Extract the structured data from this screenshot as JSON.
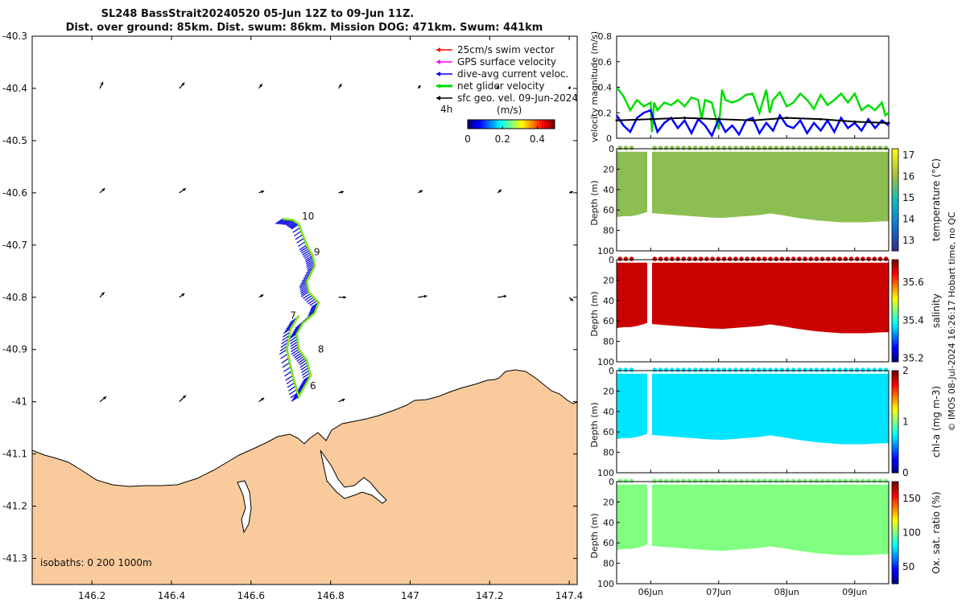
{
  "title": {
    "line1": "SL248 BassStrait20240520 05-Jun 12Z to 09-Jun 11Z.",
    "line2": "Dist. over ground: 85km. Dist. swum: 86km. Mission DOG: 471km. Swum: 441km"
  },
  "map": {
    "lon_range": [
      146.05,
      147.42
    ],
    "lat_range": [
      -41.35,
      -40.3
    ],
    "lon_ticks": [
      146.2,
      146.4,
      146.6,
      146.8,
      147,
      147.2,
      147.4
    ],
    "lon_tick_labels": [
      "146.2",
      "146.4",
      "146.6",
      "146.8",
      "147",
      "147.2",
      "147.4"
    ],
    "lat_ticks": [
      -40.3,
      -40.4,
      -40.5,
      -40.6,
      -40.7,
      -40.8,
      -40.9,
      -41,
      -41.1,
      -41.2,
      -41.3
    ],
    "lat_tick_labels": [
      "-40.3",
      "-40.4",
      "-40.5",
      "-40.6",
      "-40.7",
      "-40.8",
      "-40.9",
      "-41",
      "-41.1",
      "-41.2",
      "-41.3"
    ],
    "legend": [
      {
        "label": "25cm/s swim vector",
        "color": "#ff0000"
      },
      {
        "label": "GPS surface velocity",
        "color": "#ff00ff"
      },
      {
        "label": "dive-avg current veloc.",
        "color": "#0000ff"
      },
      {
        "label": "net glider velocity",
        "color": "#00dd00"
      },
      {
        "label": "sfc geo. vel. 09-Jun-2024",
        "color": "#000000"
      }
    ],
    "colorbar": {
      "label": "(m/s)",
      "note": "4h",
      "range": [
        0,
        0.5
      ],
      "ticks": [
        0,
        0.2,
        0.4
      ],
      "tick_labels": [
        "0",
        "0.2",
        "0.4"
      ]
    },
    "isobaths_label": "isobaths: 0   200  1000m",
    "day_labels": [
      {
        "day": "6",
        "lon": 146.74,
        "lat": -40.97
      },
      {
        "day": "7",
        "lon": 146.69,
        "lat": -40.835
      },
      {
        "day": "8",
        "lon": 146.76,
        "lat": -40.9
      },
      {
        "day": "9",
        "lon": 146.75,
        "lat": -40.713
      },
      {
        "day": "10",
        "lon": 146.72,
        "lat": -40.645
      }
    ],
    "track": [
      [
        146.68,
        -40.65
      ],
      [
        146.705,
        -40.652
      ],
      [
        146.72,
        -40.66
      ],
      [
        146.74,
        -40.7
      ],
      [
        146.755,
        -40.72
      ],
      [
        146.76,
        -40.74
      ],
      [
        146.74,
        -40.77
      ],
      [
        146.745,
        -40.79
      ],
      [
        146.77,
        -40.81
      ],
      [
        146.76,
        -40.83
      ],
      [
        146.73,
        -40.85
      ],
      [
        146.715,
        -40.87
      ],
      [
        146.72,
        -40.9
      ],
      [
        146.74,
        -40.92
      ],
      [
        146.75,
        -40.95
      ],
      [
        146.735,
        -40.97
      ],
      [
        146.72,
        -40.99
      ],
      [
        146.705,
        -40.95
      ],
      [
        146.69,
        -40.9
      ],
      [
        146.7,
        -40.86
      ],
      [
        146.72,
        -40.835
      ]
    ],
    "sfc_vectors": [
      {
        "lon": 146.22,
        "lat": -40.4,
        "u": 0.05,
        "v": 0.1
      },
      {
        "lon": 146.42,
        "lat": -40.4,
        "u": 0.08,
        "v": 0.09
      },
      {
        "lon": 146.62,
        "lat": -40.4,
        "u": 0.05,
        "v": 0.07
      },
      {
        "lon": 146.82,
        "lat": -40.4,
        "u": 0.05,
        "v": 0.07
      },
      {
        "lon": 147.02,
        "lat": -40.4,
        "u": 0.04,
        "v": 0.05
      },
      {
        "lon": 147.22,
        "lat": -40.4,
        "u": 0.02,
        "v": 0.04
      },
      {
        "lon": 147.4,
        "lat": -40.4,
        "u": 0.02,
        "v": 0.03
      },
      {
        "lon": 146.22,
        "lat": -40.6,
        "u": 0.08,
        "v": 0.07
      },
      {
        "lon": 146.42,
        "lat": -40.6,
        "u": 0.1,
        "v": 0.07
      },
      {
        "lon": 146.62,
        "lat": -40.6,
        "u": 0.08,
        "v": 0.03
      },
      {
        "lon": 146.82,
        "lat": -40.6,
        "u": 0.08,
        "v": 0.02
      },
      {
        "lon": 147.02,
        "lat": -40.6,
        "u": 0.07,
        "v": 0.04
      },
      {
        "lon": 147.22,
        "lat": -40.6,
        "u": 0.06,
        "v": 0.05
      },
      {
        "lon": 147.4,
        "lat": -40.6,
        "u": 0.06,
        "v": 0.02
      },
      {
        "lon": 146.22,
        "lat": -40.8,
        "u": 0.07,
        "v": 0.08
      },
      {
        "lon": 146.42,
        "lat": -40.8,
        "u": 0.08,
        "v": 0.06
      },
      {
        "lon": 146.62,
        "lat": -40.8,
        "u": 0.07,
        "v": 0.04
      },
      {
        "lon": 146.82,
        "lat": -40.8,
        "u": 0.12,
        "v": 0.0
      },
      {
        "lon": 147.02,
        "lat": -40.8,
        "u": 0.14,
        "v": 0.02
      },
      {
        "lon": 147.22,
        "lat": -40.8,
        "u": 0.14,
        "v": 0.02
      },
      {
        "lon": 147.4,
        "lat": -40.8,
        "u": 0.06,
        "v": -0.06
      },
      {
        "lon": 146.22,
        "lat": -41.0,
        "u": 0.1,
        "v": 0.08
      },
      {
        "lon": 146.42,
        "lat": -41.0,
        "u": 0.1,
        "v": 0.1
      },
      {
        "lon": 146.62,
        "lat": -41.0,
        "u": 0.08,
        "v": 0.06
      },
      {
        "lon": 146.82,
        "lat": -41.0,
        "u": 0.1,
        "v": 0.04
      }
    ]
  },
  "velocity_panel": {
    "ylabel": "velocity magnitude (m/s)",
    "ylim": [
      0,
      0.8
    ],
    "y_ticks": [
      0,
      0.2,
      0.4,
      0.6,
      0.8
    ],
    "y_tick_labels": [
      "0",
      "0.2",
      "0.4",
      "0.6",
      "0.8"
    ],
    "series": [
      {
        "name": "net glider velocity",
        "color": "#00dd00",
        "x": [
          5.5,
          5.6,
          5.7,
          5.8,
          5.9,
          6.0,
          6.02,
          6.05,
          6.1,
          6.2,
          6.3,
          6.4,
          6.5,
          6.6,
          6.7,
          6.75,
          6.8,
          6.9,
          7.0,
          7.05,
          7.1,
          7.2,
          7.3,
          7.4,
          7.5,
          7.6,
          7.7,
          7.75,
          7.8,
          7.9,
          8.0,
          8.1,
          8.2,
          8.3,
          8.4,
          8.5,
          8.6,
          8.7,
          8.8,
          8.9,
          9.0,
          9.1,
          9.2,
          9.3,
          9.4,
          9.45,
          9.5
        ],
        "values": [
          0.4,
          0.33,
          0.22,
          0.3,
          0.25,
          0.28,
          0.05,
          0.28,
          0.22,
          0.28,
          0.26,
          0.3,
          0.25,
          0.32,
          0.3,
          0.15,
          0.3,
          0.28,
          0.07,
          0.38,
          0.3,
          0.28,
          0.3,
          0.34,
          0.35,
          0.2,
          0.38,
          0.2,
          0.3,
          0.36,
          0.25,
          0.28,
          0.35,
          0.3,
          0.23,
          0.34,
          0.26,
          0.3,
          0.35,
          0.28,
          0.35,
          0.22,
          0.26,
          0.22,
          0.28,
          0.18,
          0.2
        ]
      },
      {
        "name": "dive-avg current veloc.",
        "color": "#0000ff",
        "x": [
          5.5,
          5.6,
          5.7,
          5.8,
          5.9,
          6.0,
          6.1,
          6.2,
          6.3,
          6.4,
          6.5,
          6.6,
          6.7,
          6.8,
          6.9,
          7.0,
          7.1,
          7.2,
          7.3,
          7.4,
          7.5,
          7.6,
          7.7,
          7.8,
          7.9,
          8.0,
          8.1,
          8.2,
          8.3,
          8.4,
          8.5,
          8.6,
          8.7,
          8.8,
          8.9,
          9.0,
          9.1,
          9.2,
          9.3,
          9.4,
          9.5
        ],
        "values": [
          0.18,
          0.1,
          0.05,
          0.16,
          0.2,
          0.22,
          0.05,
          0.12,
          0.16,
          0.08,
          0.14,
          0.04,
          0.15,
          0.1,
          0.02,
          0.15,
          0.05,
          0.1,
          0.03,
          0.14,
          0.16,
          0.04,
          0.12,
          0.06,
          0.18,
          0.1,
          0.08,
          0.14,
          0.04,
          0.12,
          0.06,
          0.14,
          0.05,
          0.16,
          0.08,
          0.12,
          0.06,
          0.15,
          0.08,
          0.14,
          0.1
        ]
      },
      {
        "name": "sfc geo. vel.",
        "color": "#000000",
        "x": [
          5.5,
          6.0,
          6.5,
          7.0,
          7.5,
          8.0,
          8.5,
          9.0,
          9.5
        ],
        "values": [
          0.14,
          0.15,
          0.16,
          0.15,
          0.14,
          0.16,
          0.15,
          0.13,
          0.12
        ]
      }
    ]
  },
  "time_axis": {
    "xlim": [
      5.5,
      9.5
    ],
    "ticks": [
      6,
      7,
      8,
      9
    ],
    "tick_labels": [
      "06Jun",
      "07Jun",
      "08Jun",
      "09Jun"
    ]
  },
  "section_panels": [
    {
      "name": "temperature",
      "label": "temperature (°C)",
      "cmap": "parula",
      "clim": [
        12.5,
        17.3
      ],
      "cbar_ticks": [
        13,
        14,
        15,
        16,
        17
      ],
      "cbar_tick_labels": [
        "13",
        "14",
        "15",
        "16",
        "17"
      ],
      "typical_value": 15.9
    },
    {
      "name": "salinity",
      "label": "salinity",
      "cmap": "jet",
      "clim": [
        35.18,
        35.72
      ],
      "cbar_ticks": [
        35.2,
        35.4,
        35.6
      ],
      "cbar_tick_labels": [
        "35.2",
        "35.4",
        "35.6"
      ],
      "typical_value": 35.68
    },
    {
      "name": "chl-a",
      "label": "chl-a (mg m-3)",
      "cmap": "jet",
      "clim": [
        0,
        2
      ],
      "cbar_ticks": [
        0,
        1,
        2
      ],
      "cbar_tick_labels": [
        "0",
        "1",
        "2"
      ],
      "typical_value": 0.7
    },
    {
      "name": "oxygen",
      "label": "Ox. sat. ratio (%)",
      "cmap": "jet",
      "clim": [
        25,
        175
      ],
      "cbar_ticks": [
        50,
        100,
        150
      ],
      "cbar_tick_labels": [
        "50",
        "100",
        "150"
      ],
      "typical_value": 100
    }
  ],
  "section_depth": {
    "ylabel": "Depth (m)",
    "ylim": [
      0,
      100
    ],
    "ticks": [
      0,
      20,
      40,
      60,
      80,
      100
    ],
    "tick_labels": [
      "0",
      "20",
      "40",
      "60",
      "80",
      "100"
    ],
    "gap_days": [
      5.95,
      6.02
    ],
    "bottom_profile": {
      "x": [
        5.5,
        5.6,
        5.7,
        5.8,
        5.95,
        6.02,
        6.2,
        6.4,
        6.6,
        6.8,
        7.0,
        7.2,
        7.4,
        7.6,
        7.8,
        8.0,
        8.2,
        8.4,
        8.6,
        8.8,
        9.0,
        9.2,
        9.4,
        9.5
      ],
      "depth": [
        67,
        66,
        66,
        65,
        62,
        63,
        64,
        65,
        66,
        67,
        68,
        67,
        66,
        65,
        63,
        66,
        68,
        70,
        71,
        72,
        72,
        72,
        71,
        71
      ]
    }
  },
  "side_note": "© IMOS 08-Jul-2024 16:26:17 Hobart time, no QC"
}
